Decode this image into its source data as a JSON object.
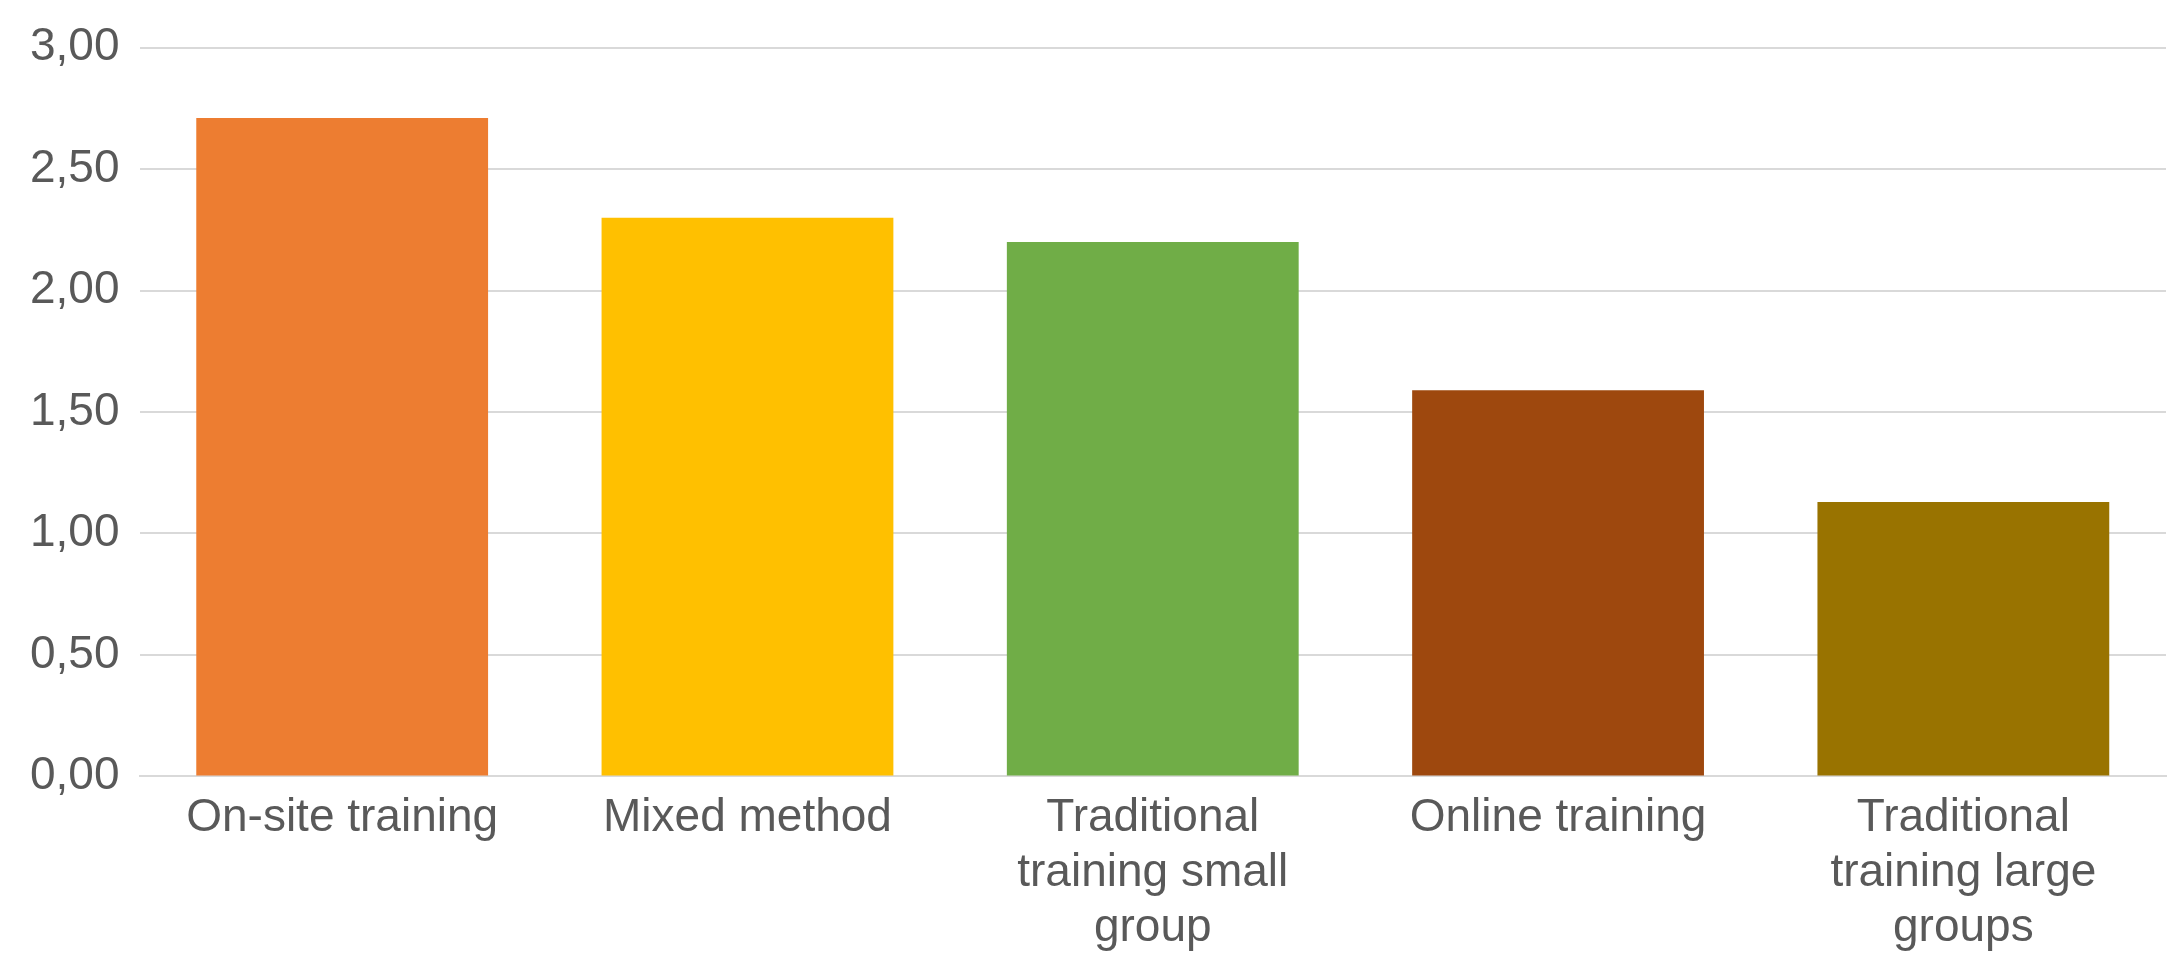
{
  "chart_data": {
    "type": "bar",
    "categories": [
      "On-site training",
      "Mixed method",
      "Traditional training small group",
      "Online training",
      "Traditional training large groups"
    ],
    "values": [
      2.71,
      2.3,
      2.2,
      1.59,
      1.13
    ],
    "colors": [
      "#ed7d31",
      "#ffc000",
      "#70ad47",
      "#9e480e",
      "#997300"
    ],
    "ylim": [
      0,
      3
    ],
    "yticks": [
      {
        "value": 0,
        "label": "0,00"
      },
      {
        "value": 0.5,
        "label": "0,50"
      },
      {
        "value": 1,
        "label": "1,00"
      },
      {
        "value": 1.5,
        "label": "1,50"
      },
      {
        "value": 2,
        "label": "2,00"
      },
      {
        "value": 2.5,
        "label": "2,50"
      },
      {
        "value": 3,
        "label": "3,00"
      }
    ],
    "grid": "y",
    "legend": false
  }
}
